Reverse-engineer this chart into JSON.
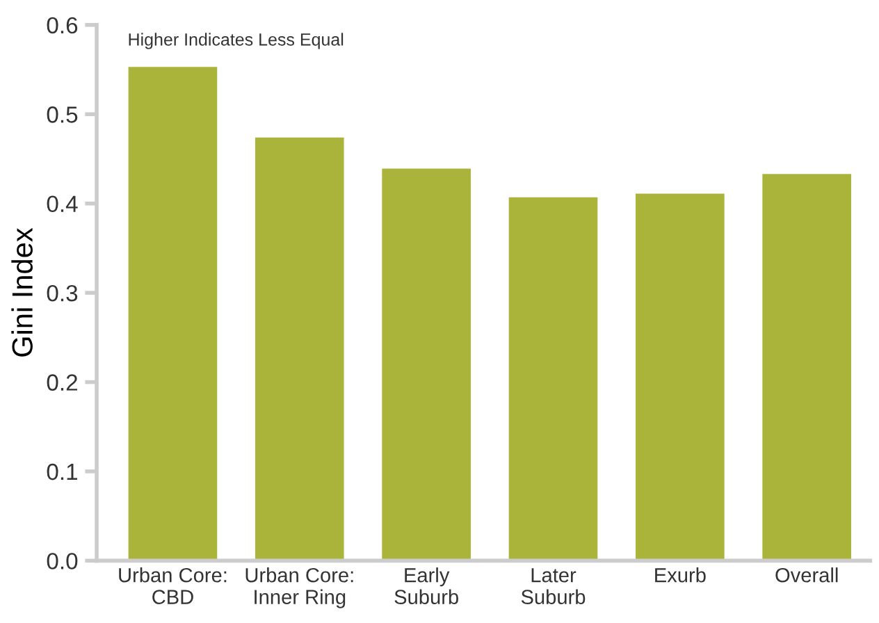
{
  "chart_data": {
    "type": "bar",
    "ylabel": "Gini Index",
    "annotations": [
      "Higher Indicates Less Equal"
    ],
    "categories": [
      "Urban Core:\nCBD",
      "Urban Core:\nInner Ring",
      "Early\nSuburb",
      "Later\nSuburb",
      "Exurb",
      "Overall"
    ],
    "values": [
      0.553,
      0.474,
      0.439,
      0.407,
      0.411,
      0.433
    ],
    "color": "#abb43a",
    "ylim": [
      0,
      0.6
    ],
    "yticks": [
      {
        "value": 0,
        "label": "0.0"
      },
      {
        "value": 0.1,
        "label": "0.1"
      },
      {
        "value": 0.2,
        "label": "0.2"
      },
      {
        "value": 0.3,
        "label": "0.3"
      },
      {
        "value": 0.4,
        "label": "0.4"
      },
      {
        "value": 0.5,
        "label": "0.5"
      },
      {
        "value": 0.6,
        "label": "0.6"
      }
    ],
    "grid": false,
    "legend": false
  }
}
